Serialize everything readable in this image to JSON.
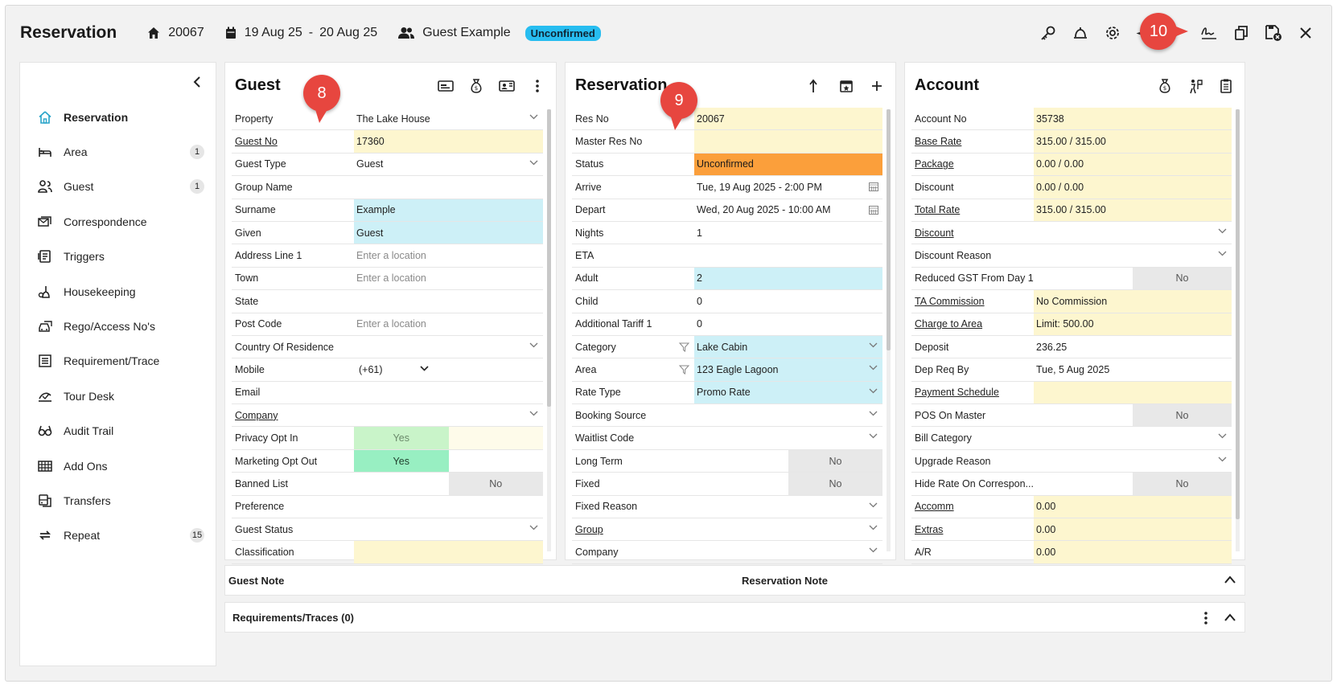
{
  "header": {
    "title": "Reservation",
    "res_no": "20067",
    "date_from": "19 Aug 25",
    "date_sep": "-",
    "date_to": "20 Aug 25",
    "guest": "Guest Example",
    "status": "Unconfirmed"
  },
  "callouts": {
    "c8": "8",
    "c9": "9",
    "c10": "10"
  },
  "sidebar": {
    "items": [
      {
        "label": "Reservation",
        "icon": "home-icon",
        "count": ""
      },
      {
        "label": "Area",
        "icon": "bed-icon",
        "count": "1"
      },
      {
        "label": "Guest",
        "icon": "people-icon",
        "count": "1"
      },
      {
        "label": "Correspondence",
        "icon": "mail-stack-icon",
        "count": ""
      },
      {
        "label": "Triggers",
        "icon": "trigger-icon",
        "count": ""
      },
      {
        "label": "Housekeeping",
        "icon": "housekeeping-icon",
        "count": ""
      },
      {
        "label": "Rego/Access No's",
        "icon": "car-icon",
        "count": ""
      },
      {
        "label": "Requirement/Trace",
        "icon": "list-icon",
        "count": ""
      },
      {
        "label": "Tour Desk",
        "icon": "tour-icon",
        "count": ""
      },
      {
        "label": "Audit Trail",
        "icon": "glasses-icon",
        "count": ""
      },
      {
        "label": "Add Ons",
        "icon": "grid-icon",
        "count": ""
      },
      {
        "label": "Transfers",
        "icon": "bus-icon",
        "count": ""
      },
      {
        "label": "Repeat",
        "icon": "repeat-icon",
        "count": "15"
      }
    ]
  },
  "guest_panel": {
    "title": "Guest",
    "rows": [
      {
        "label": "Property",
        "value": "The Lake House",
        "style": "",
        "chev": true
      },
      {
        "label": "Guest No",
        "value": "17360",
        "style": "yellow",
        "link": true
      },
      {
        "label": "Guest Type",
        "value": "Guest",
        "style": "",
        "chev": true
      },
      {
        "label": "Group Name",
        "value": "",
        "style": ""
      },
      {
        "label": "Surname",
        "value": "Example",
        "style": "cyan"
      },
      {
        "label": "Given",
        "value": "Guest",
        "style": "cyan"
      },
      {
        "label": "Address Line 1",
        "value": "Enter a location",
        "style": "placeholder"
      },
      {
        "label": "Town",
        "value": "Enter a location",
        "style": "placeholder"
      },
      {
        "label": "State",
        "value": "",
        "style": ""
      },
      {
        "label": "Post Code",
        "value": "Enter a location",
        "style": "placeholder"
      },
      {
        "label": "Country Of Residence",
        "value": "",
        "style": "",
        "chev": true
      },
      {
        "label": "Mobile",
        "value": "(+61)",
        "style": "",
        "mobile": true
      },
      {
        "label": "Email",
        "value": "",
        "style": ""
      },
      {
        "label": "Company",
        "value": "",
        "style": "",
        "chev": true,
        "link": true
      },
      {
        "label": "Privacy Opt In",
        "toggle": [
          "Yes",
          ""
        ],
        "tstyle": [
          "green-l",
          "ltyellow"
        ]
      },
      {
        "label": "Marketing Opt Out",
        "toggle": [
          "Yes",
          ""
        ],
        "tstyle": [
          "green-d",
          "blank"
        ]
      },
      {
        "label": "Banned List",
        "toggle": [
          "",
          "No"
        ],
        "tstyle": [
          "blank",
          "grey"
        ]
      },
      {
        "label": "Preference",
        "value": "",
        "style": ""
      },
      {
        "label": "Guest Status",
        "value": "",
        "style": "",
        "chev": true
      },
      {
        "label": "Classification",
        "value": "",
        "style": "yellow"
      }
    ]
  },
  "reservation_panel": {
    "title": "Reservation",
    "rows": [
      {
        "label": "Res No",
        "value": "20067",
        "style": "yellow"
      },
      {
        "label": "Master Res No",
        "value": "",
        "style": "yellow"
      },
      {
        "label": "Status",
        "value": "Unconfirmed",
        "style": "orange"
      },
      {
        "label": "Arrive",
        "value": "Tue, 19 Aug 2025 - 2:00 PM",
        "style": "",
        "cal": true
      },
      {
        "label": "Depart",
        "value": "Wed, 20 Aug 2025 - 10:00 AM",
        "style": "",
        "cal": true
      },
      {
        "label": "Nights",
        "value": "1",
        "style": ""
      },
      {
        "label": "ETA",
        "value": "",
        "style": ""
      },
      {
        "label": "Adult",
        "value": "2",
        "style": "cyan"
      },
      {
        "label": "Child",
        "value": "0",
        "style": ""
      },
      {
        "label": "Additional Tariff 1",
        "value": "0",
        "style": ""
      },
      {
        "label": "Category",
        "value": "Lake Cabin",
        "style": "cyan",
        "chev": true,
        "filter": true
      },
      {
        "label": "Area",
        "value": "123 Eagle Lagoon",
        "style": "cyan",
        "chev": true,
        "filter": true
      },
      {
        "label": "Rate Type",
        "value": "Promo Rate",
        "style": "cyan",
        "chev": true
      },
      {
        "label": "Booking Source",
        "value": "",
        "style": "",
        "chev": true
      },
      {
        "label": "Waitlist Code",
        "value": "",
        "style": "",
        "chev": true
      },
      {
        "label": "Long Term",
        "toggle": [
          "",
          "No"
        ],
        "tstyle": [
          "blank",
          "grey"
        ]
      },
      {
        "label": "Fixed",
        "toggle": [
          "",
          "No"
        ],
        "tstyle": [
          "blank",
          "grey"
        ]
      },
      {
        "label": "Fixed Reason",
        "value": "",
        "style": "",
        "chev": true
      },
      {
        "label": "Group",
        "value": "",
        "style": "",
        "chev": true,
        "link": true
      },
      {
        "label": "Company",
        "value": "",
        "style": "",
        "chev": true
      }
    ]
  },
  "account_panel": {
    "title": "Account",
    "rows": [
      {
        "label": "Account No",
        "value": "35738",
        "style": "yellow"
      },
      {
        "label": "Base Rate",
        "value": "315.00 / 315.00",
        "style": "yellow",
        "link": true
      },
      {
        "label": "Package",
        "value": "0.00 / 0.00",
        "style": "yellow",
        "link": true
      },
      {
        "label": "Discount",
        "value": "0.00 / 0.00",
        "style": "yellow"
      },
      {
        "label": "Total Rate",
        "value": "315.00 / 315.00",
        "style": "yellow",
        "link": true
      },
      {
        "label": "Discount",
        "value": "",
        "style": "",
        "chev": true,
        "link": true
      },
      {
        "label": "Discount Reason",
        "value": "",
        "style": "",
        "chev": true
      },
      {
        "label": "Reduced GST From Day 1",
        "toggle": [
          "",
          "No"
        ],
        "tstyle": [
          "blank",
          "grey"
        ]
      },
      {
        "label": "TA Commission",
        "value": "No Commission",
        "style": "yellow",
        "link": true
      },
      {
        "label": "Charge to Area",
        "value": "Limit: 500.00",
        "style": "yellow",
        "link": true
      },
      {
        "label": "Deposit",
        "value": "236.25",
        "style": ""
      },
      {
        "label": "Dep Req By",
        "value": "Tue, 5 Aug 2025",
        "style": ""
      },
      {
        "label": "Payment Schedule",
        "value": "",
        "style": "yellow",
        "link": true
      },
      {
        "label": "POS On Master",
        "toggle": [
          "",
          "No"
        ],
        "tstyle": [
          "blank",
          "grey"
        ]
      },
      {
        "label": "Bill Category",
        "value": "",
        "style": "",
        "chev": true
      },
      {
        "label": "Upgrade Reason",
        "value": "",
        "style": "",
        "chev": true
      },
      {
        "label": "Hide Rate On Correspon...",
        "toggle": [
          "",
          "No"
        ],
        "tstyle": [
          "blank",
          "grey"
        ]
      },
      {
        "label": "Accomm",
        "value": "0.00",
        "style": "yellow",
        "link": true
      },
      {
        "label": "Extras",
        "value": "0.00",
        "style": "yellow",
        "link": true
      },
      {
        "label": "A/R",
        "value": "0.00",
        "style": "yellow"
      }
    ]
  },
  "notes": {
    "guest_note": "Guest Note",
    "reservation_note": "Reservation Note"
  },
  "requirements": {
    "label": "Requirements/Traces (0)"
  }
}
